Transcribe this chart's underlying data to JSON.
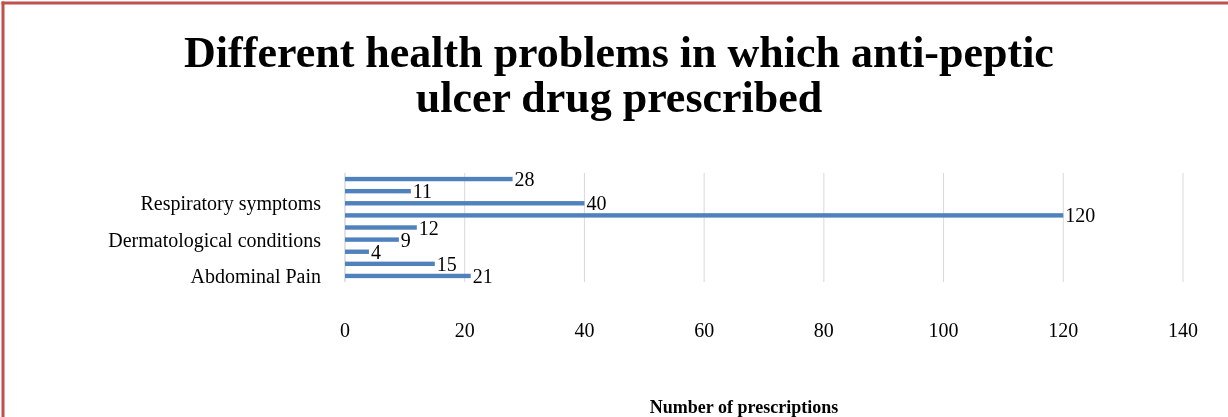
{
  "chart_data": {
    "type": "bar",
    "orientation": "horizontal",
    "title": "Different health problems in which anti-peptic ulcer drug prescribed",
    "xlabel": "Number of prescriptions",
    "categories": [
      null,
      null,
      "Respiratory symptoms",
      null,
      null,
      "Dermatological conditions",
      null,
      null,
      "Abdominal Pain"
    ],
    "values": [
      28,
      11,
      40,
      120,
      12,
      9,
      4,
      15,
      21
    ],
    "color": "#4f81bd",
    "xlim": [
      0,
      140
    ],
    "xticks": [
      0,
      20,
      40,
      60,
      80,
      100,
      120,
      140
    ],
    "grid": "x",
    "data_labels": true
  }
}
